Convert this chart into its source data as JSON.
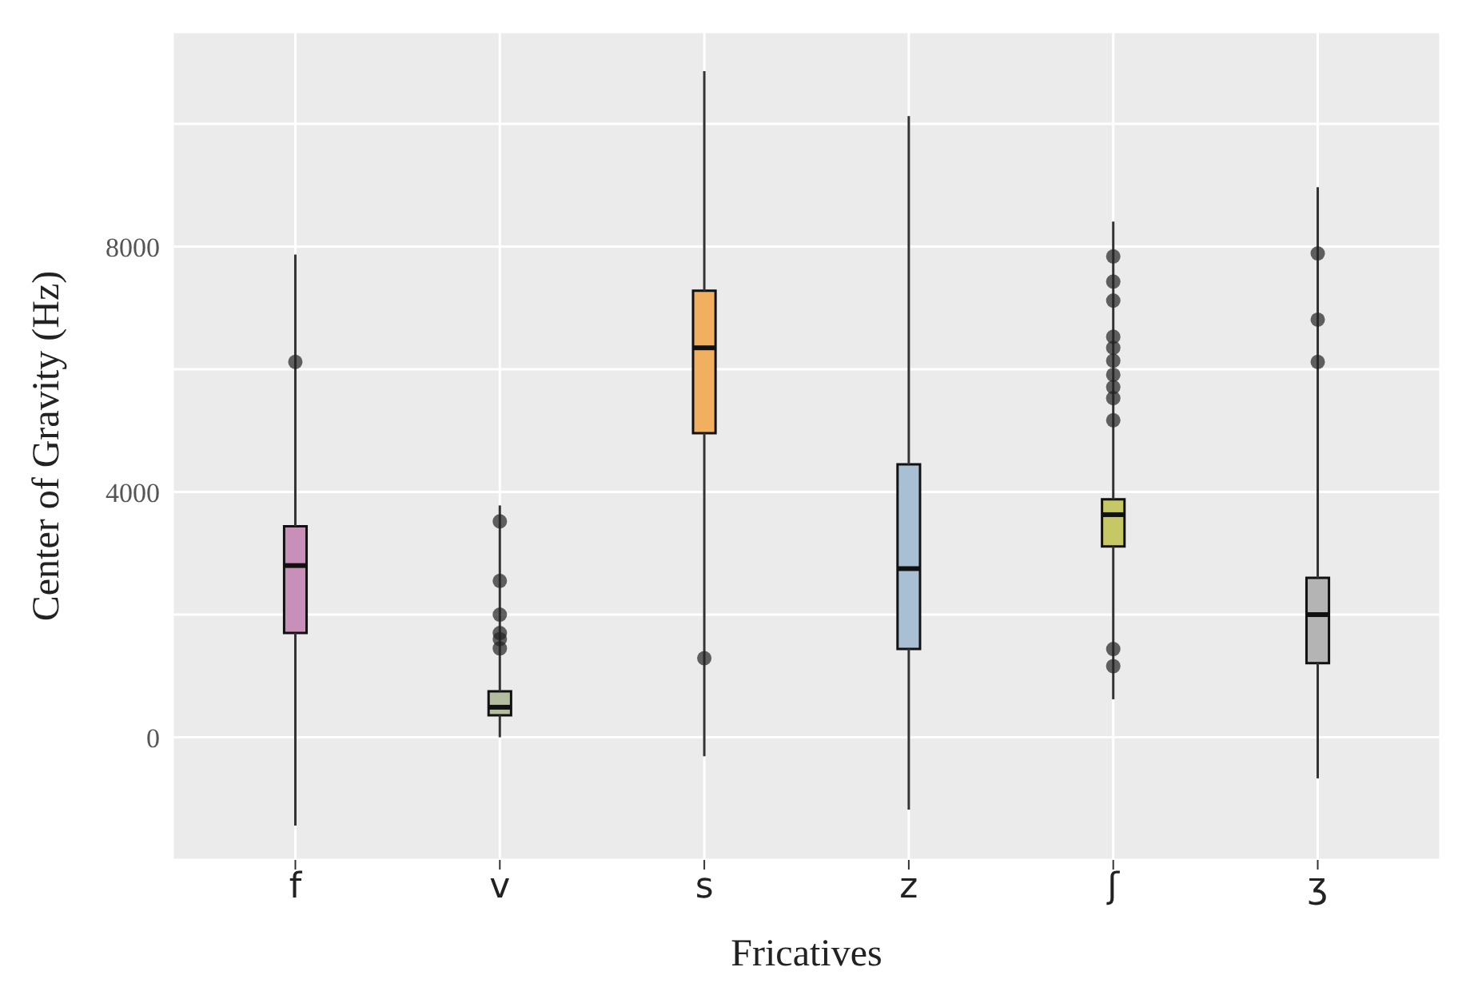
{
  "chart_data": {
    "type": "box",
    "xlabel": "Fricatives",
    "ylabel": "Center of Gravity (Hz)",
    "categories": [
      "f",
      "v",
      "s",
      "z",
      "ʃ",
      "ʒ"
    ],
    "colors": [
      "#c88fb8",
      "#b3bea0",
      "#f0b060",
      "#a9c0d4",
      "#c6c865",
      "#b4b4b4"
    ],
    "boxes": [
      {
        "low": -1440,
        "q1": 1700,
        "median": 2800,
        "q3": 3440,
        "high": 7870,
        "outliers": [
          6120
        ]
      },
      {
        "low": 0,
        "q1": 360,
        "median": 490,
        "q3": 750,
        "high": 3780,
        "outliers": [
          3520,
          2550,
          2000,
          1700,
          1600,
          1450
        ]
      },
      {
        "low": -310,
        "q1": 4960,
        "median": 6350,
        "q3": 7280,
        "high": 10860,
        "outliers": [
          1290
        ]
      },
      {
        "low": -1180,
        "q1": 1440,
        "median": 2750,
        "q3": 4450,
        "high": 10130
      },
      {
        "low": 620,
        "q1": 3110,
        "median": 3630,
        "q3": 3880,
        "high": 8410,
        "outliers": [
          7840,
          7430,
          7120,
          6530,
          6350,
          6140,
          5910,
          5710,
          5530,
          5170,
          1440,
          1160
        ]
      },
      {
        "low": -670,
        "q1": 1210,
        "median": 2000,
        "q3": 2600,
        "high": 8970,
        "outliers": [
          7890,
          6810,
          6120
        ]
      }
    ],
    "ylim": [
      -2000,
      11500
    ],
    "yticks": [
      0,
      {
        "value": 2000,
        "label": null
      },
      4000,
      {
        "value": 6000,
        "label": null
      },
      8000,
      {
        "value": 10000,
        "label": null
      }
    ],
    "grid": true
  }
}
